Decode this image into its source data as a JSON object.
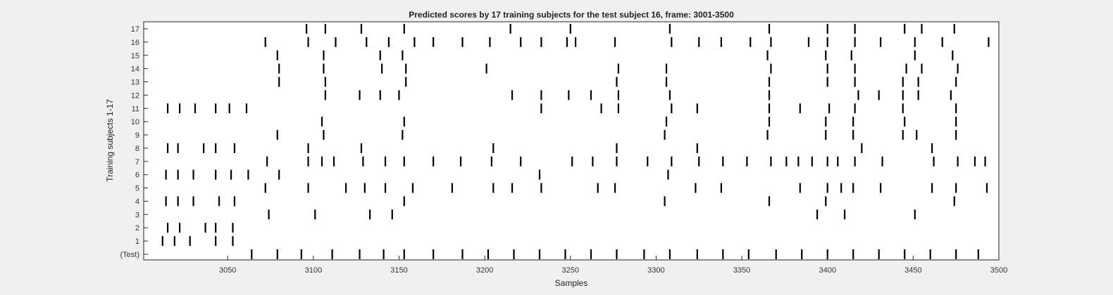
{
  "chart_data": {
    "type": "scatter",
    "title": "Predicted scores by 17 training subjects for the test subject 16, frame: 3001-3500",
    "xlabel": "Samples",
    "ylabel": "Training subjects 1-17",
    "xlim": [
      3001,
      3500
    ],
    "x_ticks": [
      3050,
      3100,
      3150,
      3200,
      3250,
      3300,
      3350,
      3400,
      3450,
      3500
    ],
    "y_tick_labels": [
      "(Test)",
      "1",
      "2",
      "3",
      "4",
      "5",
      "6",
      "7",
      "8",
      "9",
      "10",
      "11",
      "12",
      "13",
      "14",
      "15",
      "16",
      "17"
    ],
    "grid": false,
    "marker": "vertical-line",
    "series": [
      {
        "label": "(Test)",
        "x": [
          3064,
          3079,
          3093,
          3111,
          3127,
          3141,
          3153,
          3170,
          3187,
          3202,
          3217,
          3232,
          3247,
          3262,
          3277,
          3293,
          3308,
          3324,
          3339,
          3354,
          3370,
          3385,
          3400,
          3415,
          3430,
          3445,
          3460,
          3475,
          3488
        ]
      },
      {
        "label": "1",
        "x": [
          3012,
          3019,
          3028,
          3043,
          3053
        ]
      },
      {
        "label": "2",
        "x": [
          3015,
          3022,
          3037,
          3043,
          3053
        ]
      },
      {
        "label": "3",
        "x": [
          3074,
          3101,
          3133,
          3146,
          3394,
          3410,
          3451
        ]
      },
      {
        "label": "4",
        "x": [
          3014,
          3021,
          3030,
          3045,
          3054,
          3153,
          3305,
          3366,
          3399,
          3474
        ]
      },
      {
        "label": "5",
        "x": [
          3072,
          3097,
          3119,
          3130,
          3142,
          3158,
          3181,
          3205,
          3216,
          3233,
          3266,
          3276,
          3323,
          3338,
          3384,
          3400,
          3408,
          3415,
          3431,
          3461,
          3475,
          3493
        ]
      },
      {
        "label": "6",
        "x": [
          3014,
          3021,
          3030,
          3043,
          3052,
          3062,
          3080,
          3232,
          3307
        ]
      },
      {
        "label": "7",
        "x": [
          3073,
          3097,
          3105,
          3112,
          3129,
          3142,
          3153,
          3170,
          3186,
          3204,
          3221,
          3251,
          3263,
          3277,
          3295,
          3309,
          3325,
          3339,
          3353,
          3367,
          3376,
          3383,
          3391,
          3400,
          3406,
          3416,
          3432,
          3462,
          3476,
          3486,
          3492
        ]
      },
      {
        "label": "8",
        "x": [
          3015,
          3021,
          3036,
          3043,
          3054,
          3097,
          3128,
          3205,
          3277,
          3324,
          3420,
          3461
        ]
      },
      {
        "label": "9",
        "x": [
          3079,
          3106,
          3152,
          3305,
          3365,
          3399,
          3415,
          3444,
          3452,
          3475
        ]
      },
      {
        "label": "10",
        "x": [
          3105,
          3153,
          3306,
          3366,
          3399,
          3415,
          3445,
          3475
        ]
      },
      {
        "label": "11",
        "x": [
          3015,
          3022,
          3031,
          3043,
          3051,
          3061,
          3233,
          3268,
          3278,
          3309,
          3324,
          3366,
          3384,
          3401,
          3416,
          3444,
          3475
        ]
      },
      {
        "label": "12",
        "x": [
          3107,
          3127,
          3139,
          3150,
          3216,
          3233,
          3249,
          3262,
          3278,
          3308,
          3366,
          3418,
          3430,
          3444,
          3453,
          3472
        ]
      },
      {
        "label": "13",
        "x": [
          3080,
          3107,
          3154,
          3277,
          3306,
          3366,
          3400,
          3416,
          3444,
          3453,
          3475
        ]
      },
      {
        "label": "14",
        "x": [
          3080,
          3106,
          3140,
          3154,
          3201,
          3278,
          3306,
          3367,
          3400,
          3416,
          3446,
          3455,
          3476
        ]
      },
      {
        "label": "15",
        "x": [
          3079,
          3106,
          3139,
          3152,
          3365,
          3399,
          3414,
          3451,
          3473
        ]
      },
      {
        "label": "16",
        "x": [
          3072,
          3097,
          3113,
          3131,
          3144,
          3159,
          3170,
          3187,
          3203,
          3221,
          3233,
          3248,
          3253,
          3276,
          3309,
          3325,
          3338,
          3355,
          3367,
          3389,
          3400,
          3416,
          3431,
          3451,
          3467,
          3494
        ]
      },
      {
        "label": "17",
        "x": [
          3096,
          3107,
          3128,
          3153,
          3215,
          3250,
          3308,
          3366,
          3400,
          3416,
          3445,
          3455,
          3474
        ]
      }
    ]
  }
}
